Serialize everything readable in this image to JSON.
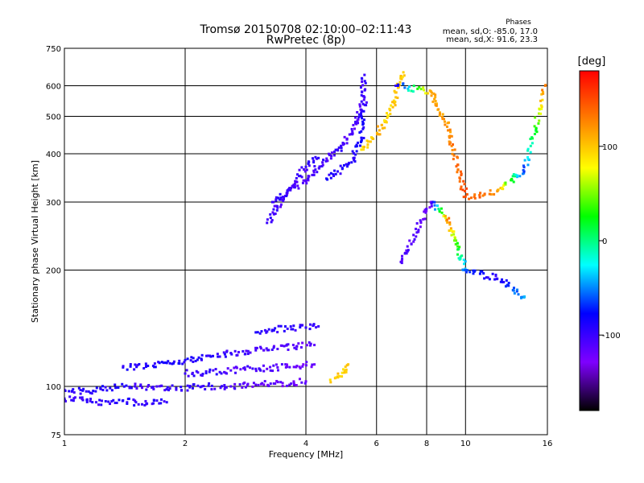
{
  "header": {
    "title": "Tromsø 20150708 02:10:00–02:11:43",
    "subtitle": "RwPretec (8p)"
  },
  "stats": {
    "heading": "Phases",
    "line_o": "mean, sd,O: -85.0, 17.0",
    "line_x": "mean, sd,X:  91.6, 23.3"
  },
  "colorbar": {
    "label": "[deg]",
    "ticks": [
      "100",
      "0",
      "-100"
    ],
    "tick_values": [
      100,
      0,
      -100
    ],
    "range": [
      -180,
      180
    ],
    "colors": [
      "#ff0000",
      "#ff7f00",
      "#ffff00",
      "#00ff00",
      "#00ffff",
      "#0000ff",
      "#7f00ff",
      "#000000"
    ]
  },
  "chart_data": {
    "type": "scatter",
    "title": "Tromsø 20150708 02:10:00–02:11:43",
    "subtitle": "RwPretec (8p)",
    "xlabel": "Frequency [MHz]",
    "ylabel": "Stationary phase Virtual Height [km]",
    "xscale": "log",
    "yscale": "log",
    "xlim": [
      1,
      16
    ],
    "ylim": [
      75,
      750
    ],
    "xticks": [
      1,
      2,
      4,
      6,
      8,
      10,
      16
    ],
    "xtick_labels": [
      "1",
      "2",
      "4",
      "6",
      "8",
      "10",
      "16"
    ],
    "yticks": [
      75,
      100,
      200,
      300,
      400,
      500,
      600,
      750
    ],
    "ytick_labels": [
      "75",
      "100",
      "200",
      "300",
      "400",
      "500",
      "600",
      "750"
    ],
    "grid": true,
    "color_scale": "phase [deg]",
    "traces": [
      {
        "x": [
          1.0,
          1.15,
          1.3,
          1.5,
          1.7,
          1.9,
          2.2,
          2.6,
          3.0,
          3.5,
          4.0
        ],
        "y": [
          98,
          97,
          99,
          100,
          100,
          99,
          100,
          100,
          101,
          102,
          103
        ],
        "phase": [
          -100,
          -95,
          -90,
          -100,
          -105,
          -95,
          -100,
          -110,
          -115,
          -120,
          -120
        ]
      },
      {
        "x": [
          1.0,
          1.2,
          1.4,
          1.6,
          1.8
        ],
        "y": [
          93,
          91,
          92,
          90,
          91
        ],
        "phase": [
          -95,
          -100,
          -90,
          -100,
          -95
        ]
      },
      {
        "x": [
          1.4,
          1.6,
          1.8,
          2.0,
          2.3,
          2.6,
          3.0,
          3.4,
          3.8,
          4.2
        ],
        "y": [
          112,
          113,
          115,
          117,
          120,
          122,
          124,
          125,
          127,
          128
        ],
        "phase": [
          -90,
          -95,
          -85,
          -90,
          -95,
          -100,
          -105,
          -110,
          -110,
          -115
        ]
      },
      {
        "x": [
          2.0,
          2.3,
          2.6,
          3.0,
          3.4,
          3.8,
          4.2
        ],
        "y": [
          108,
          109,
          110,
          111,
          112,
          113,
          114
        ],
        "phase": [
          -100,
          -95,
          -110,
          -105,
          -115,
          -120,
          -120
        ]
      },
      {
        "x": [
          3.0,
          3.3,
          3.6,
          4.0,
          4.3
        ],
        "y": [
          138,
          140,
          141,
          142,
          143
        ],
        "phase": [
          -90,
          -95,
          -100,
          -95,
          -100
        ]
      },
      {
        "x": [
          4.6,
          4.8,
          5.0,
          5.1
        ],
        "y": [
          104,
          106,
          110,
          114
        ],
        "phase": [
          90,
          100,
          95,
          100
        ]
      },
      {
        "x": [
          3.2,
          3.4,
          3.7,
          4.0,
          4.3
        ],
        "y": [
          265,
          290,
          330,
          370,
          390
        ],
        "phase": [
          -100,
          -105,
          -110,
          -100,
          -95
        ]
      },
      {
        "x": [
          3.3,
          3.6,
          4.0,
          4.4,
          4.8,
          5.2,
          5.5,
          5.6
        ],
        "y": [
          300,
          320,
          340,
          380,
          410,
          450,
          520,
          640
        ],
        "phase": [
          -95,
          -100,
          -110,
          -105,
          -100,
          -110,
          -105,
          -100
        ]
      },
      {
        "x": [
          4.5,
          4.8,
          5.2,
          5.5,
          5.6
        ],
        "y": [
          345,
          360,
          380,
          440,
          560
        ],
        "phase": [
          -90,
          -95,
          -90,
          -85,
          -100
        ]
      },
      {
        "x": [
          5.5,
          5.8,
          6.1,
          6.4,
          6.7,
          7.0
        ],
        "y": [
          410,
          430,
          460,
          500,
          560,
          650
        ],
        "phase": [
          90,
          100,
          110,
          90,
          100,
          95
        ]
      },
      {
        "x": [
          6.7,
          8.2,
          9.0,
          10.0,
          12.0,
          14.0,
          15.8
        ],
        "y": [
          600,
          580,
          470,
          310,
          320,
          360,
          600
        ],
        "phase": [
          -100,
          110,
          120,
          150,
          120,
          -70,
          130
        ]
      },
      {
        "x": [
          6.9,
          8.2,
          9.0,
          10.0,
          12.0,
          14.0
        ],
        "y": [
          210,
          300,
          270,
          200,
          190,
          170
        ],
        "phase": [
          -110,
          -120,
          130,
          -60,
          -100,
          -40
        ]
      }
    ]
  }
}
